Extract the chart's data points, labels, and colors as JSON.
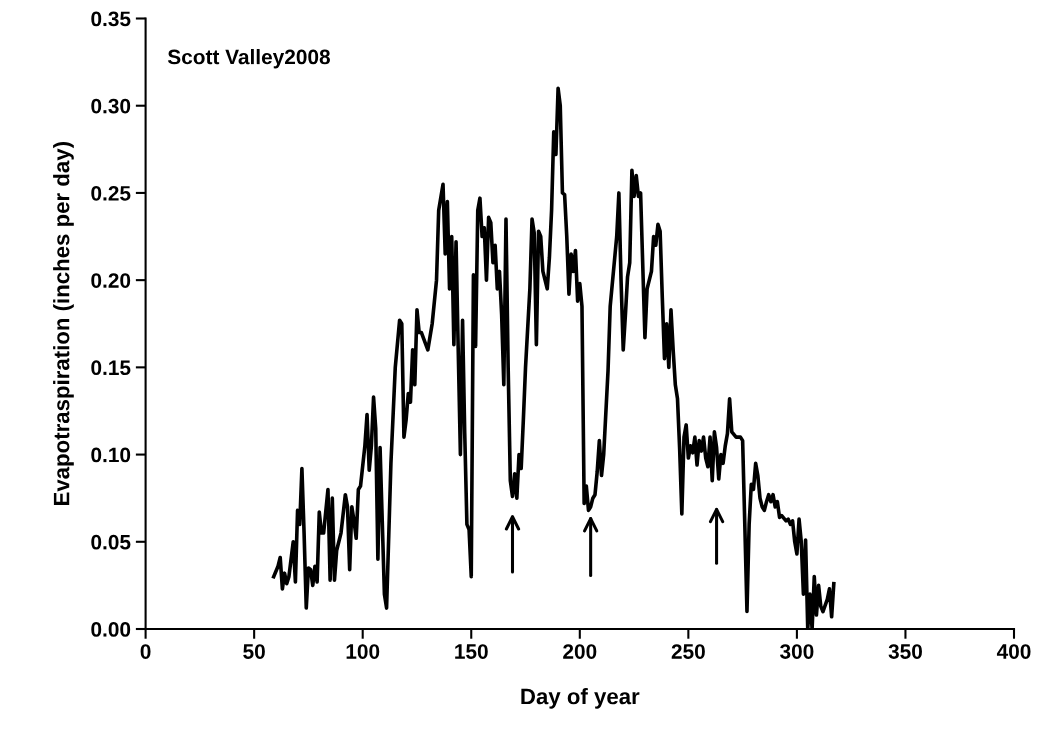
{
  "chart_data": {
    "type": "line",
    "title": "Scott Valley2008",
    "xlabel": "Day of year",
    "ylabel": "Evapotraspiration (inches per day)",
    "xlim": [
      0,
      400
    ],
    "xticks": [
      0,
      50,
      100,
      150,
      200,
      250,
      300,
      350,
      400
    ],
    "ylim": [
      0,
      0.35
    ],
    "yticks": [
      {
        "value": 0,
        "label": "0.00"
      },
      {
        "value": 0.05,
        "label": "0.05"
      },
      {
        "value": 0.1,
        "label": "0.10"
      },
      {
        "value": 0.15,
        "label": "0.15"
      },
      {
        "value": 0.2,
        "label": "0.20"
      },
      {
        "value": 0.25,
        "label": "0.25"
      },
      {
        "value": 0.3,
        "label": "0.30"
      },
      {
        "value": 0.35,
        "label": "0.35"
      }
    ],
    "grid": false,
    "legend": false,
    "marker": "none",
    "line_style": "solid",
    "series": [
      {
        "color": "#000000",
        "x": [
          59,
          61,
          62,
          63,
          64,
          65,
          66,
          68,
          69,
          70,
          71,
          72,
          73,
          74,
          75,
          76,
          77,
          78,
          79,
          80,
          81,
          82,
          84,
          85,
          86,
          87,
          88,
          90,
          92,
          93,
          94,
          95,
          96,
          97,
          98,
          99,
          101,
          102,
          103,
          104,
          105,
          106,
          107,
          108,
          110,
          111,
          113,
          115,
          117,
          118,
          119,
          120,
          121,
          122,
          123,
          124,
          125,
          126,
          127,
          130,
          132,
          134,
          135,
          137,
          138,
          139,
          140,
          141,
          142,
          143,
          144,
          145,
          146,
          147,
          148,
          149,
          150,
          151,
          152,
          153,
          154,
          155,
          156,
          157,
          158,
          159,
          160,
          161,
          162,
          163,
          164,
          165,
          166,
          167,
          168,
          169,
          170,
          171,
          172,
          173,
          174,
          175,
          177,
          178,
          179,
          180,
          181,
          182,
          183,
          184,
          185,
          186,
          187,
          188,
          189,
          190,
          191,
          192,
          193,
          194,
          195,
          196,
          197,
          198,
          199,
          200,
          201,
          202,
          203,
          204,
          205,
          206,
          207,
          208,
          209,
          210,
          211,
          213,
          214,
          217,
          218,
          219,
          220,
          221,
          222,
          223,
          224,
          225,
          226,
          227,
          228,
          230,
          231,
          232,
          233,
          234,
          235,
          236,
          237,
          238,
          239,
          240,
          241,
          242,
          243,
          244,
          245,
          246,
          247,
          248,
          249,
          250,
          251,
          252,
          253,
          254,
          255,
          256,
          257,
          258,
          259,
          260,
          261,
          262,
          263,
          264,
          265,
          266,
          267,
          268,
          269,
          270,
          272,
          274,
          275,
          276,
          277,
          278,
          279,
          280,
          281,
          282,
          283,
          284,
          285,
          286,
          287,
          288,
          289,
          290,
          291,
          292,
          293,
          295,
          296,
          297,
          298,
          299,
          300,
          301,
          302,
          303,
          304,
          305,
          306,
          307,
          308,
          309,
          310,
          311,
          312,
          314,
          315,
          316,
          317
        ],
        "values": [
          0.03,
          0.036,
          0.041,
          0.023,
          0.032,
          0.026,
          0.03,
          0.05,
          0.027,
          0.068,
          0.06,
          0.092,
          0.055,
          0.012,
          0.035,
          0.034,
          0.025,
          0.036,
          0.027,
          0.067,
          0.055,
          0.055,
          0.08,
          0.028,
          0.075,
          0.028,
          0.045,
          0.055,
          0.077,
          0.07,
          0.034,
          0.07,
          0.062,
          0.052,
          0.08,
          0.082,
          0.105,
          0.123,
          0.091,
          0.105,
          0.133,
          0.115,
          0.04,
          0.104,
          0.02,
          0.012,
          0.095,
          0.15,
          0.177,
          0.175,
          0.11,
          0.12,
          0.135,
          0.13,
          0.16,
          0.14,
          0.183,
          0.17,
          0.17,
          0.16,
          0.175,
          0.2,
          0.24,
          0.255,
          0.215,
          0.245,
          0.195,
          0.225,
          0.163,
          0.222,
          0.16,
          0.1,
          0.177,
          0.112,
          0.06,
          0.057,
          0.03,
          0.203,
          0.162,
          0.24,
          0.247,
          0.225,
          0.23,
          0.2,
          0.236,
          0.233,
          0.21,
          0.22,
          0.195,
          0.205,
          0.18,
          0.14,
          0.235,
          0.15,
          0.085,
          0.076,
          0.089,
          0.075,
          0.1,
          0.092,
          0.12,
          0.15,
          0.195,
          0.235,
          0.227,
          0.163,
          0.228,
          0.225,
          0.205,
          0.2,
          0.195,
          0.213,
          0.24,
          0.285,
          0.272,
          0.31,
          0.3,
          0.25,
          0.249,
          0.225,
          0.192,
          0.215,
          0.205,
          0.217,
          0.188,
          0.198,
          0.185,
          0.072,
          0.082,
          0.068,
          0.07,
          0.075,
          0.077,
          0.09,
          0.108,
          0.088,
          0.1,
          0.148,
          0.185,
          0.225,
          0.25,
          0.2,
          0.16,
          0.18,
          0.202,
          0.21,
          0.263,
          0.248,
          0.26,
          0.248,
          0.25,
          0.167,
          0.195,
          0.2,
          0.205,
          0.225,
          0.22,
          0.232,
          0.228,
          0.19,
          0.155,
          0.175,
          0.15,
          0.183,
          0.16,
          0.14,
          0.132,
          0.103,
          0.066,
          0.11,
          0.117,
          0.098,
          0.105,
          0.101,
          0.11,
          0.094,
          0.108,
          0.102,
          0.11,
          0.098,
          0.093,
          0.11,
          0.085,
          0.113,
          0.104,
          0.086,
          0.1,
          0.095,
          0.105,
          0.112,
          0.132,
          0.113,
          0.11,
          0.11,
          0.108,
          0.06,
          0.01,
          0.06,
          0.083,
          0.08,
          0.095,
          0.088,
          0.075,
          0.07,
          0.068,
          0.073,
          0.077,
          0.073,
          0.077,
          0.07,
          0.073,
          0.064,
          0.065,
          0.062,
          0.063,
          0.06,
          0.062,
          0.05,
          0.043,
          0.063,
          0.05,
          0.02,
          0.051,
          0.0,
          0.02,
          0.0,
          0.03,
          0.008,
          0.025,
          0.013,
          0.01,
          0.017,
          0.023,
          0.007,
          0.026
        ]
      }
    ]
  }
}
